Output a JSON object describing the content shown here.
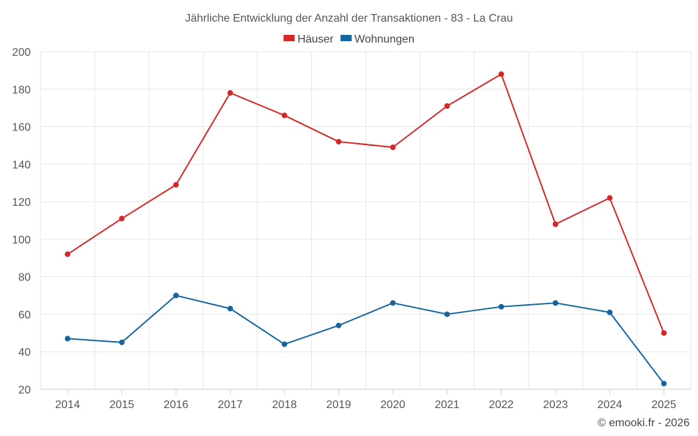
{
  "chart_data": {
    "type": "line",
    "title": "Jährliche Entwicklung der Anzahl der Transaktionen - 83 - La Crau",
    "categories": [
      "2014",
      "2015",
      "2016",
      "2017",
      "2018",
      "2019",
      "2020",
      "2021",
      "2022",
      "2023",
      "2024",
      "2025"
    ],
    "series": [
      {
        "name": "Häuser",
        "color": "#d62728",
        "values": [
          92,
          111,
          129,
          178,
          166,
          152,
          149,
          171,
          188,
          108,
          122,
          50
        ]
      },
      {
        "name": "Wohnungen",
        "color": "#1565a0",
        "values": [
          47,
          45,
          70,
          63,
          44,
          54,
          66,
          60,
          64,
          66,
          61,
          23
        ]
      }
    ],
    "ylim": [
      20,
      200
    ],
    "yticks": [
      20,
      40,
      60,
      80,
      100,
      120,
      140,
      160,
      180,
      200
    ],
    "grid": true,
    "legend": "top-center",
    "xlabel": "",
    "ylabel": ""
  },
  "credit": "© emooki.fr - 2026"
}
